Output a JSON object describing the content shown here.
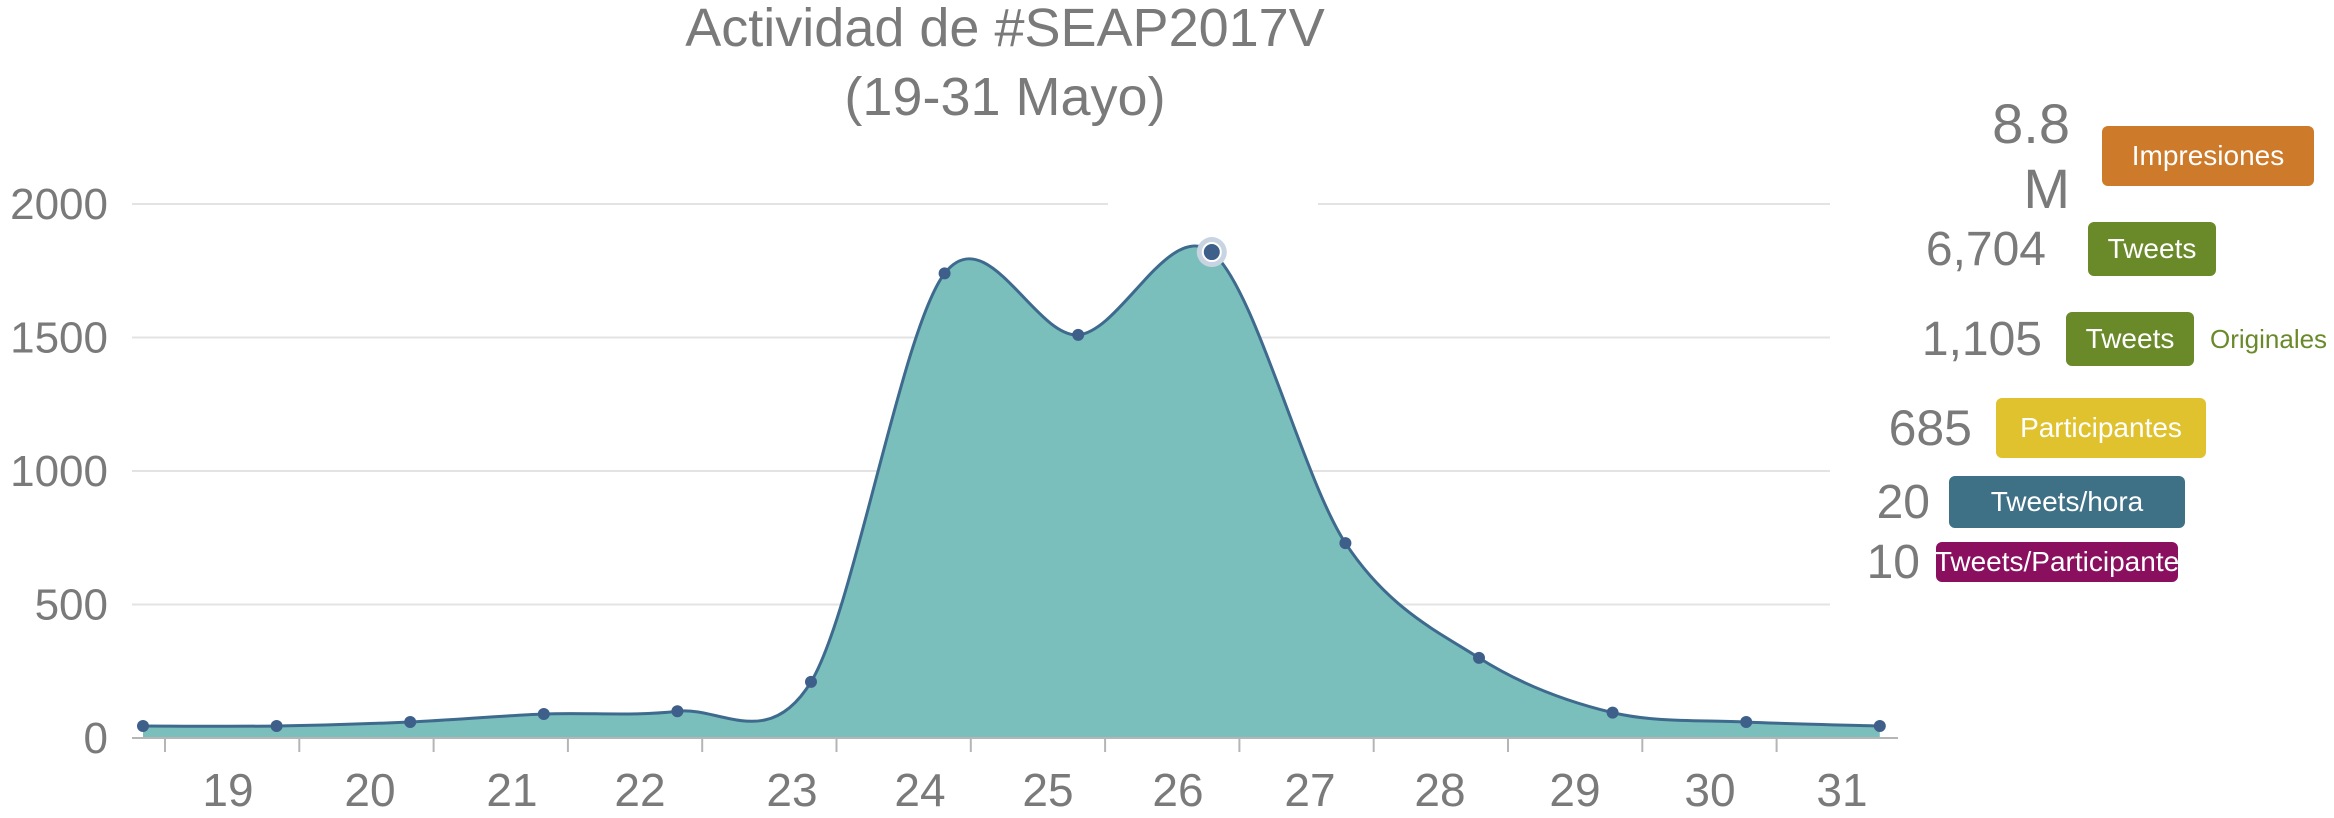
{
  "chart_data": {
    "type": "area",
    "title": "Actividad de #SEAP2017V",
    "subtitle": "(19-31 Mayo)",
    "xlabel": "",
    "ylabel": "",
    "categories": [
      "19",
      "20",
      "21",
      "22",
      "23",
      "24",
      "25",
      "26",
      "27",
      "28",
      "29",
      "30",
      "31"
    ],
    "x": [
      "18",
      "19",
      "20",
      "21",
      "22",
      "23",
      "24",
      "25",
      "26",
      "27",
      "28",
      "29",
      "30",
      "31"
    ],
    "values": [
      45,
      45,
      60,
      90,
      100,
      210,
      1740,
      1510,
      1820,
      730,
      300,
      95,
      60,
      45
    ],
    "highlight_index": 8,
    "ylim": [
      0,
      2000
    ],
    "yticks": [
      "0",
      "500",
      "1000",
      "1500",
      "2000"
    ],
    "grid": true,
    "fill_color": "#7bbfbd",
    "line_color": "#3e6a8e",
    "point_color": "#3e5f8a"
  },
  "stats": [
    {
      "value": "8.8 M",
      "label": "Impresiones",
      "extra": "",
      "color": "#cd7a2b"
    },
    {
      "value": "6,704",
      "label": "Tweets",
      "extra": "",
      "color": "#6a8a2a"
    },
    {
      "value": "1,105",
      "label": "Tweets",
      "extra": "Originales",
      "color": "#6a8a2a"
    },
    {
      "value": "685",
      "label": "Participantes",
      "extra": "",
      "color": "#e0c22e"
    },
    {
      "value": "20",
      "label": "Tweets/hora",
      "extra": "",
      "color": "#3f7186"
    },
    {
      "value": "10",
      "label": "Tweets/Participante",
      "extra": "",
      "color": "#8a0f5f"
    }
  ]
}
